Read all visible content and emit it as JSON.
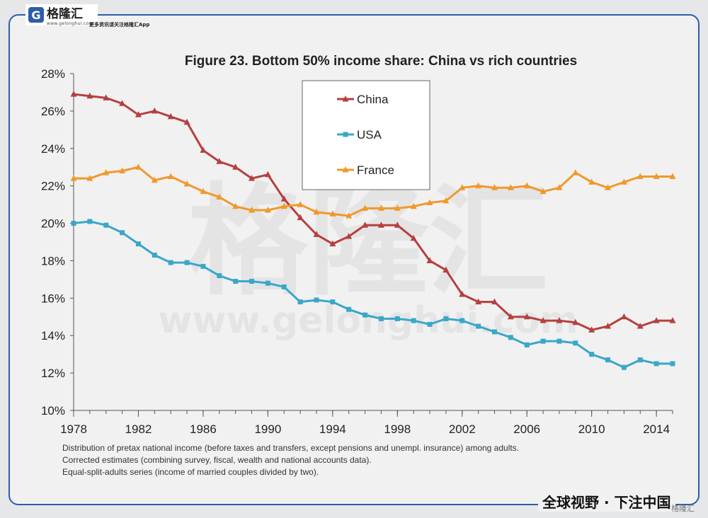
{
  "branding": {
    "logo_name": "格隆汇",
    "logo_url": "www.gelonghui.com",
    "logo_tag": "更多资讯请关注格隆汇App",
    "slogan": "全球视野 · 下注中国",
    "watermark_text": "格隆汇",
    "watermark_url": "www.gelonghui.com"
  },
  "notes": [
    "Distribution of pretax national income (before taxes and transfers, except pensions and unempl. insurance) among adults.",
    "Corrected estimates (combining survey, fiscal, wealth and national accounts data).",
    "Equal-split-adults series (income of married couples divided by two)."
  ],
  "chart_data": {
    "type": "line",
    "title": "Figure 23. Bottom 50% income share: China vs rich countries",
    "xlabel": "",
    "ylabel": "",
    "x": [
      1978,
      1979,
      1980,
      1981,
      1982,
      1983,
      1984,
      1985,
      1986,
      1987,
      1988,
      1989,
      1990,
      1991,
      1992,
      1993,
      1994,
      1995,
      1996,
      1997,
      1998,
      1999,
      2000,
      2001,
      2002,
      2003,
      2004,
      2005,
      2006,
      2007,
      2008,
      2009,
      2010,
      2011,
      2012,
      2013,
      2014,
      2015
    ],
    "xlim": [
      1978,
      2015
    ],
    "xticks": [
      1978,
      1982,
      1986,
      1990,
      1994,
      1998,
      2002,
      2006,
      2010,
      2014
    ],
    "ylim": [
      0.1,
      0.28
    ],
    "yticks": [
      0.1,
      0.12,
      0.14,
      0.16,
      0.18,
      0.2,
      0.22,
      0.24,
      0.26,
      0.28
    ],
    "ytick_labels": [
      "10%",
      "12%",
      "14%",
      "16%",
      "18%",
      "20%",
      "22%",
      "24%",
      "26%",
      "28%"
    ],
    "grid": false,
    "legend_position": "top-center",
    "series": [
      {
        "name": "China",
        "color": "#b5403f",
        "marker": "triangle",
        "values": [
          0.269,
          0.268,
          0.267,
          0.264,
          0.258,
          0.26,
          0.257,
          0.254,
          0.239,
          0.233,
          0.23,
          0.224,
          0.226,
          0.213,
          0.203,
          0.194,
          0.189,
          0.193,
          0.199,
          0.199,
          0.199,
          0.192,
          0.18,
          0.175,
          0.162,
          0.158,
          0.158,
          0.15,
          0.15,
          0.148,
          0.148,
          0.147,
          0.143,
          0.145,
          0.15,
          0.145,
          0.148,
          0.148
        ]
      },
      {
        "name": "USA",
        "color": "#3aa7c8",
        "marker": "square",
        "values": [
          0.2,
          0.201,
          0.199,
          0.195,
          0.189,
          0.183,
          0.179,
          0.179,
          0.177,
          0.172,
          0.169,
          0.169,
          0.168,
          0.166,
          0.158,
          0.159,
          0.158,
          0.154,
          0.151,
          0.149,
          0.149,
          0.148,
          0.146,
          0.149,
          0.148,
          0.145,
          0.142,
          0.139,
          0.135,
          0.137,
          0.137,
          0.136,
          0.13,
          0.127,
          0.123,
          0.127,
          0.125,
          0.125
        ]
      },
      {
        "name": "France",
        "color": "#f0992b",
        "marker": "triangle",
        "values": [
          0.224,
          0.224,
          0.227,
          0.228,
          0.23,
          0.223,
          0.225,
          0.221,
          0.217,
          0.214,
          0.209,
          0.207,
          0.207,
          0.209,
          0.21,
          0.206,
          0.205,
          0.204,
          0.208,
          0.208,
          0.208,
          0.209,
          0.211,
          0.212,
          0.219,
          0.22,
          0.219,
          0.219,
          0.22,
          0.217,
          0.219,
          0.227,
          0.222,
          0.219,
          0.222,
          0.225,
          0.225,
          0.225
        ]
      }
    ]
  }
}
